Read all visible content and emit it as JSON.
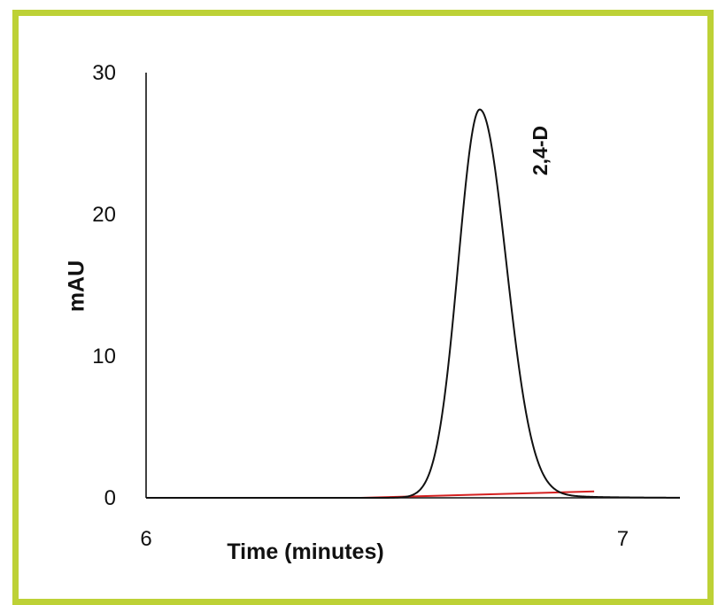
{
  "colors": {
    "frame": "#bdd136",
    "trace": "#111111",
    "baseline": "#d42020"
  },
  "chart_data": {
    "type": "line",
    "xlabel": "Time (minutes)",
    "ylabel": "mAU",
    "xlim": [
      6.0,
      7.12
    ],
    "ylim": [
      0,
      30
    ],
    "x_ticks": [
      "6",
      "7"
    ],
    "y_ticks": [
      "0",
      "10",
      "20",
      "30"
    ],
    "grid": false,
    "series": [
      {
        "color": "#111111",
        "peak": {
          "center": 6.7,
          "height": 27.4,
          "sigma_left": 0.045,
          "sigma_right": 0.055,
          "tail_left": 0.008,
          "tail_right": 0.025
        },
        "x_range": [
          6.0,
          7.12
        ],
        "baseline_level": 0.0
      }
    ],
    "integration_baseline": {
      "color": "#d42020",
      "start": [
        6.45,
        0.0
      ],
      "end": [
        6.94,
        0.45
      ]
    },
    "annotations": [
      {
        "text": "2,4-D",
        "x": 6.83,
        "y": 24.5,
        "rotation": -90
      }
    ]
  }
}
